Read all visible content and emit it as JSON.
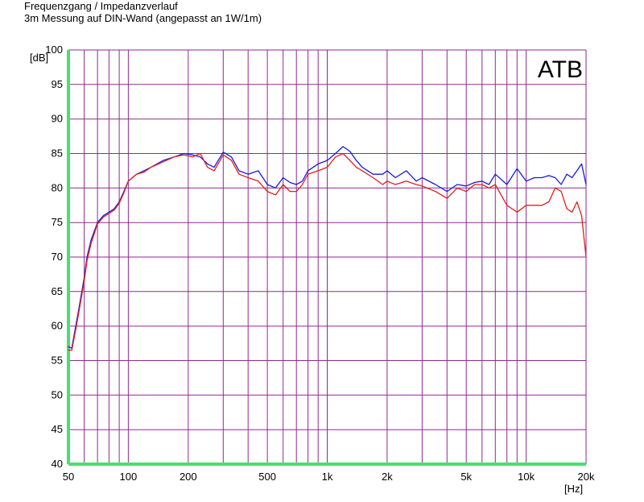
{
  "header": {
    "title": "Frequenzgang / Impedanzverlauf",
    "subtitle": "3m Messung auf DIN-Wand (angepasst an 1W/1m)"
  },
  "chart_data": {
    "type": "line",
    "title": "Frequenzgang / Impedanzverlauf",
    "subtitle": "3m Messung auf DIN-Wand (angepasst an 1W/1m)",
    "xlabel": "[Hz]",
    "ylabel": "[dB]",
    "xscale": "log",
    "xlim": [
      50,
      20000
    ],
    "ylim": [
      40,
      100
    ],
    "grid": true,
    "x_tick_labels": [
      {
        "value": 50,
        "label": "50"
      },
      {
        "value": 100,
        "label": "100"
      },
      {
        "value": 200,
        "label": "200"
      },
      {
        "value": 500,
        "label": "500"
      },
      {
        "value": 1000,
        "label": "1k"
      },
      {
        "value": 2000,
        "label": "2k"
      },
      {
        "value": 5000,
        "label": "5k"
      },
      {
        "value": 10000,
        "label": "10k"
      },
      {
        "value": 20000,
        "label": "20k"
      }
    ],
    "y_ticks": [
      40,
      45,
      50,
      55,
      60,
      65,
      70,
      75,
      80,
      85,
      90,
      95,
      100
    ],
    "annotation": "ATB",
    "colors": {
      "grid": "#8e2a8e",
      "axis": "#44e070",
      "series_blue": "#1a1adc",
      "series_red": "#e21e1e"
    },
    "series": [
      {
        "color": "#1a1adc",
        "x": [
          50,
          52,
          54,
          56,
          58,
          60,
          62,
          65,
          70,
          75,
          80,
          85,
          90,
          95,
          100,
          110,
          120,
          130,
          150,
          170,
          190,
          210,
          230,
          250,
          270,
          300,
          330,
          360,
          400,
          450,
          500,
          550,
          600,
          650,
          700,
          750,
          800,
          900,
          1000,
          1100,
          1200,
          1300,
          1400,
          1500,
          1700,
          1900,
          2000,
          2200,
          2500,
          2800,
          3000,
          3500,
          4000,
          4500,
          5000,
          5500,
          6000,
          6500,
          7000,
          8000,
          9000,
          10000,
          11000,
          12000,
          13000,
          14000,
          15000,
          16000,
          17000,
          18000,
          19000,
          20000
        ],
        "y": [
          57,
          56.8,
          59.5,
          62,
          64.5,
          67,
          70,
          72.5,
          75,
          76,
          76.5,
          77,
          78,
          79.5,
          81,
          82,
          82.5,
          83,
          84,
          84.5,
          85,
          84.8,
          84.5,
          83.5,
          83,
          85.2,
          84.5,
          82.5,
          82,
          82.5,
          80.5,
          80,
          81.5,
          80.8,
          80.5,
          81,
          82.5,
          83.5,
          84,
          85,
          86,
          85.3,
          84,
          83,
          82,
          82,
          82.5,
          81.5,
          82.5,
          81,
          81.5,
          80.5,
          79.5,
          80.5,
          80.3,
          80.8,
          81,
          80.5,
          82,
          80.5,
          82.8,
          81,
          81.5,
          81.5,
          81.8,
          81.5,
          80.5,
          82,
          81.5,
          82.5,
          83.5,
          80.5
        ]
      },
      {
        "color": "#e21e1e",
        "x": [
          50,
          52,
          54,
          56,
          58,
          60,
          62,
          65,
          70,
          75,
          80,
          85,
          90,
          95,
          100,
          110,
          120,
          130,
          150,
          170,
          190,
          210,
          230,
          250,
          270,
          300,
          330,
          360,
          400,
          450,
          500,
          550,
          600,
          650,
          700,
          750,
          800,
          900,
          1000,
          1100,
          1200,
          1300,
          1400,
          1500,
          1700,
          1900,
          2000,
          2200,
          2500,
          2800,
          3000,
          3500,
          4000,
          4500,
          5000,
          5500,
          6000,
          6500,
          7000,
          8000,
          9000,
          10000,
          11000,
          12000,
          13000,
          14000,
          15000,
          16000,
          17000,
          18000,
          19000,
          20000
        ],
        "y": [
          56.5,
          56.5,
          59,
          61.5,
          64,
          66.5,
          69.5,
          72,
          74.8,
          75.8,
          76.3,
          76.8,
          77.8,
          79.3,
          81,
          82,
          82.3,
          83,
          83.8,
          84.5,
          84.8,
          84.5,
          85,
          83,
          82.5,
          84.8,
          84,
          82,
          81.5,
          81,
          79.5,
          79,
          80.5,
          79.5,
          79.5,
          80.5,
          82,
          82.5,
          83,
          84.5,
          85,
          84,
          83,
          82.5,
          81.5,
          80.5,
          81,
          80.5,
          81,
          80.5,
          80.3,
          79.5,
          78.5,
          80,
          79.5,
          80.5,
          80.5,
          80,
          80.5,
          77.5,
          76.5,
          77.5,
          77.5,
          77.5,
          78,
          80,
          79.5,
          77,
          76.5,
          78,
          76,
          70
        ]
      }
    ]
  }
}
